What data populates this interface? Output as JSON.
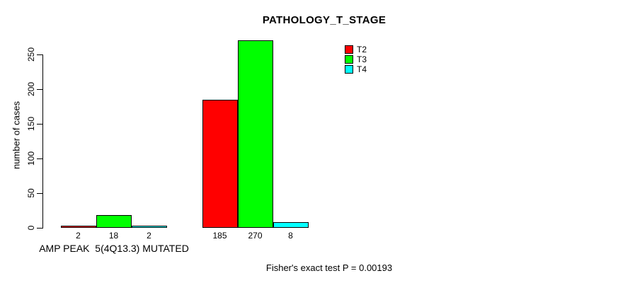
{
  "chart_data": {
    "type": "bar",
    "title": "PATHOLOGY_T_STAGE",
    "ylabel": "number of cases",
    "xlabel": "AMP PEAK  5(4Q13.3) MUTATED",
    "yticks": [
      0,
      50,
      100,
      150,
      200,
      250
    ],
    "ylim": [
      0,
      250
    ],
    "grid": false,
    "legend_position": "top-right",
    "show_bar_value_labels": true,
    "series": [
      {
        "name": "T2",
        "color": "#ff0000",
        "values": [
          2,
          185
        ]
      },
      {
        "name": "T3",
        "color": "#00ff00",
        "values": [
          18,
          270
        ]
      },
      {
        "name": "T4",
        "color": "#00ffff",
        "values": [
          2,
          8
        ]
      }
    ],
    "annotation": "Fisher's exact test P = 0.00193"
  }
}
